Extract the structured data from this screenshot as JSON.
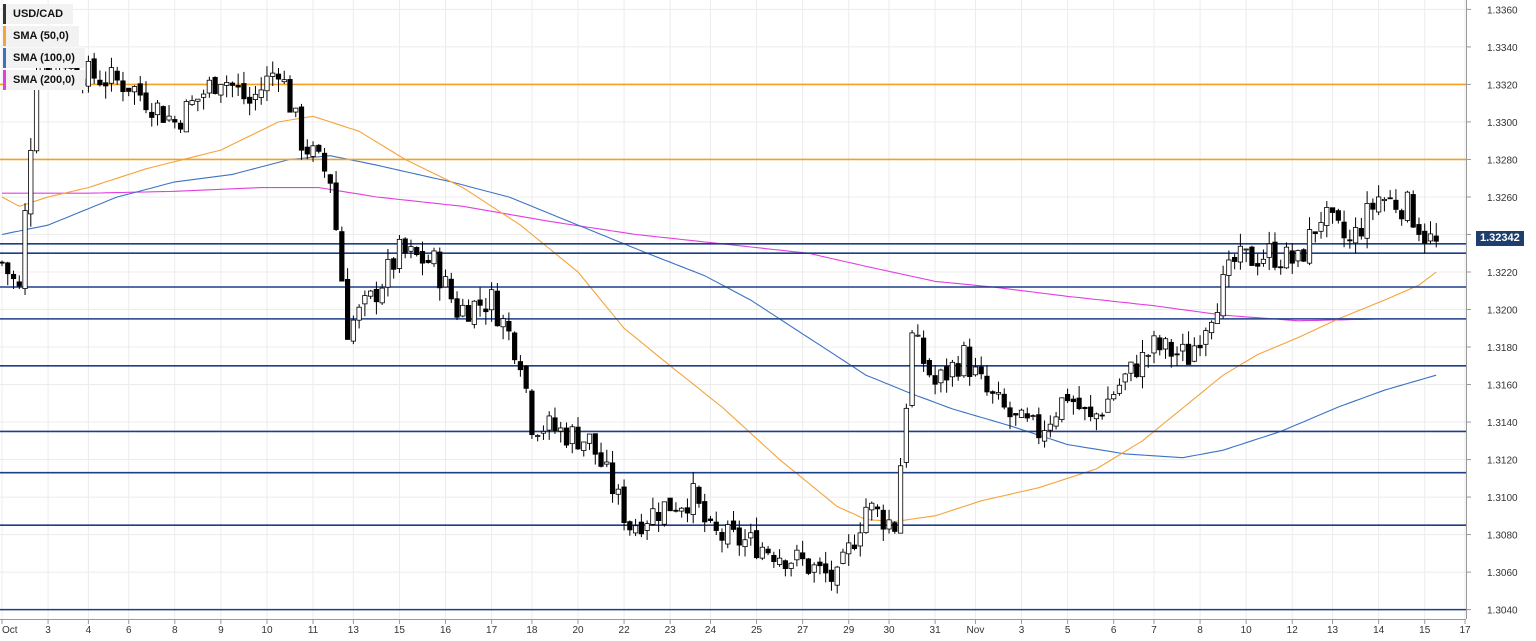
{
  "chart_data": {
    "type": "candlestick",
    "symbol": "USD/CAD",
    "current_price": "1.32342",
    "y_axis": {
      "range": [
        1.3035,
        1.3365
      ],
      "ticks": [
        "1.3360",
        "1.3340",
        "1.3320",
        "1.3300",
        "1.3280",
        "1.3260",
        "1.3240",
        "1.3220",
        "1.3200",
        "1.3180",
        "1.3160",
        "1.3140",
        "1.3120",
        "1.3100",
        "1.3080",
        "1.3060",
        "1.3040"
      ]
    },
    "x_axis": {
      "candle_count": 250,
      "ticks": [
        {
          "index": 0,
          "label": "Oct"
        },
        {
          "index": 8,
          "label": "3"
        },
        {
          "index": 15,
          "label": "4"
        },
        {
          "index": 22,
          "label": "6"
        },
        {
          "index": 30,
          "label": "8"
        },
        {
          "index": 38,
          "label": "9"
        },
        {
          "index": 46,
          "label": "10"
        },
        {
          "index": 54,
          "label": "11"
        },
        {
          "index": 61,
          "label": "13"
        },
        {
          "index": 69,
          "label": "15"
        },
        {
          "index": 77,
          "label": "16"
        },
        {
          "index": 85,
          "label": "17"
        },
        {
          "index": 92,
          "label": "18"
        },
        {
          "index": 100,
          "label": "20"
        },
        {
          "index": 108,
          "label": "22"
        },
        {
          "index": 116,
          "label": "23"
        },
        {
          "index": 123,
          "label": "24"
        },
        {
          "index": 131,
          "label": "25"
        },
        {
          "index": 139,
          "label": "27"
        },
        {
          "index": 147,
          "label": "29"
        },
        {
          "index": 154,
          "label": "30"
        },
        {
          "index": 162,
          "label": "31"
        },
        {
          "index": 169,
          "label": "Nov"
        },
        {
          "index": 177,
          "label": "3"
        },
        {
          "index": 185,
          "label": "5"
        },
        {
          "index": 193,
          "label": "6"
        },
        {
          "index": 200,
          "label": "7"
        },
        {
          "index": 208,
          "label": "8"
        },
        {
          "index": 216,
          "label": "10"
        },
        {
          "index": 224,
          "label": "12"
        },
        {
          "index": 231,
          "label": "13"
        },
        {
          "index": 239,
          "label": "14"
        },
        {
          "index": 247,
          "label": "15"
        },
        {
          "index": 254,
          "label": "17"
        }
      ]
    },
    "legend": [
      {
        "label": "USD/CAD",
        "color": "#333333"
      },
      {
        "label": "SMA (50,0)",
        "color": "#f5a33a"
      },
      {
        "label": "SMA (100,0)",
        "color": "#3b73c4"
      },
      {
        "label": "SMA (200,0)",
        "color": "#e040e0"
      }
    ],
    "horizontal_levels": [
      {
        "value": 1.332,
        "color": "#f5a023"
      },
      {
        "value": 1.328,
        "color": "#f5a023"
      },
      {
        "value": 1.3235,
        "color": "#1e3e8a"
      },
      {
        "value": 1.323,
        "color": "#1e3e8a"
      },
      {
        "value": 1.3212,
        "color": "#1e3e8a"
      },
      {
        "value": 1.3195,
        "color": "#1e3e8a"
      },
      {
        "value": 1.317,
        "color": "#1e3e8a"
      },
      {
        "value": 1.3135,
        "color": "#1e3e8a"
      },
      {
        "value": 1.3113,
        "color": "#1e3e8a"
      },
      {
        "value": 1.3085,
        "color": "#1e3e8a"
      },
      {
        "value": 1.304,
        "color": "#1e3e8a"
      }
    ],
    "price_path": [
      [
        0,
        1.3225
      ],
      [
        3,
        1.321
      ],
      [
        6,
        1.333
      ],
      [
        10,
        1.3335
      ],
      [
        15,
        1.3325
      ],
      [
        22,
        1.332
      ],
      [
        30,
        1.33
      ],
      [
        38,
        1.3325
      ],
      [
        43,
        1.331
      ],
      [
        48,
        1.333
      ],
      [
        52,
        1.329
      ],
      [
        57,
        1.327
      ],
      [
        60,
        1.319
      ],
      [
        64,
        1.3205
      ],
      [
        69,
        1.323
      ],
      [
        75,
        1.3225
      ],
      [
        79,
        1.32
      ],
      [
        85,
        1.3205
      ],
      [
        90,
        1.3175
      ],
      [
        92,
        1.314
      ],
      [
        97,
        1.3135
      ],
      [
        102,
        1.313
      ],
      [
        106,
        1.3105
      ],
      [
        109,
        1.3085
      ],
      [
        115,
        1.3095
      ],
      [
        120,
        1.31
      ],
      [
        123,
        1.308
      ],
      [
        131,
        1.3075
      ],
      [
        139,
        1.3065
      ],
      [
        145,
        1.3055
      ],
      [
        150,
        1.3095
      ],
      [
        155,
        1.3085
      ],
      [
        158,
        1.3185
      ],
      [
        162,
        1.316
      ],
      [
        167,
        1.3175
      ],
      [
        171,
        1.3155
      ],
      [
        176,
        1.314
      ],
      [
        180,
        1.3135
      ],
      [
        185,
        1.3155
      ],
      [
        189,
        1.314
      ],
      [
        194,
        1.316
      ],
      [
        200,
        1.318
      ],
      [
        206,
        1.3175
      ],
      [
        210,
        1.32
      ],
      [
        214,
        1.3225
      ],
      [
        220,
        1.323
      ],
      [
        225,
        1.3225
      ],
      [
        229,
        1.325
      ],
      [
        234,
        1.3235
      ],
      [
        239,
        1.326
      ],
      [
        244,
        1.3255
      ],
      [
        247,
        1.324
      ],
      [
        249,
        1.3234
      ]
    ],
    "sma50_path": [
      [
        0,
        1.326
      ],
      [
        3,
        1.3255
      ],
      [
        8,
        1.326
      ],
      [
        15,
        1.3265
      ],
      [
        25,
        1.3275
      ],
      [
        38,
        1.3285
      ],
      [
        48,
        1.33
      ],
      [
        54,
        1.3303
      ],
      [
        62,
        1.3295
      ],
      [
        70,
        1.328
      ],
      [
        80,
        1.3265
      ],
      [
        90,
        1.3245
      ],
      [
        100,
        1.322
      ],
      [
        108,
        1.319
      ],
      [
        116,
        1.317
      ],
      [
        125,
        1.3148
      ],
      [
        135,
        1.312
      ],
      [
        145,
        1.3095
      ],
      [
        150,
        1.3088
      ],
      [
        155,
        1.3087
      ],
      [
        162,
        1.309
      ],
      [
        170,
        1.3098
      ],
      [
        180,
        1.3105
      ],
      [
        190,
        1.3115
      ],
      [
        198,
        1.313
      ],
      [
        206,
        1.315
      ],
      [
        212,
        1.3165
      ],
      [
        218,
        1.3176
      ],
      [
        225,
        1.3185
      ],
      [
        232,
        1.3195
      ],
      [
        240,
        1.3205
      ],
      [
        246,
        1.3213
      ],
      [
        249,
        1.322
      ]
    ],
    "sma100_path": [
      [
        0,
        1.324
      ],
      [
        8,
        1.3245
      ],
      [
        20,
        1.326
      ],
      [
        30,
        1.3268
      ],
      [
        40,
        1.3272
      ],
      [
        50,
        1.328
      ],
      [
        57,
        1.3282
      ],
      [
        65,
        1.3277
      ],
      [
        78,
        1.3268
      ],
      [
        88,
        1.326
      ],
      [
        100,
        1.3245
      ],
      [
        112,
        1.323
      ],
      [
        122,
        1.3218
      ],
      [
        130,
        1.3205
      ],
      [
        140,
        1.3185
      ],
      [
        150,
        1.3165
      ],
      [
        158,
        1.3155
      ],
      [
        165,
        1.3147
      ],
      [
        175,
        1.3138
      ],
      [
        185,
        1.3128
      ],
      [
        195,
        1.3123
      ],
      [
        205,
        1.3121
      ],
      [
        212,
        1.3125
      ],
      [
        222,
        1.3135
      ],
      [
        232,
        1.3148
      ],
      [
        240,
        1.3157
      ],
      [
        249,
        1.3165
      ]
    ],
    "sma200_path": [
      [
        0,
        1.3262
      ],
      [
        15,
        1.3262
      ],
      [
        30,
        1.3263
      ],
      [
        45,
        1.3265
      ],
      [
        55,
        1.3265
      ],
      [
        65,
        1.326
      ],
      [
        80,
        1.3255
      ],
      [
        95,
        1.3247
      ],
      [
        110,
        1.324
      ],
      [
        125,
        1.3235
      ],
      [
        140,
        1.323
      ],
      [
        150,
        1.3223
      ],
      [
        162,
        1.3215
      ],
      [
        172,
        1.3212
      ],
      [
        185,
        1.3207
      ],
      [
        200,
        1.3202
      ],
      [
        212,
        1.3197
      ],
      [
        225,
        1.3194
      ],
      [
        240,
        1.3195
      ],
      [
        249,
        1.3195
      ]
    ]
  }
}
